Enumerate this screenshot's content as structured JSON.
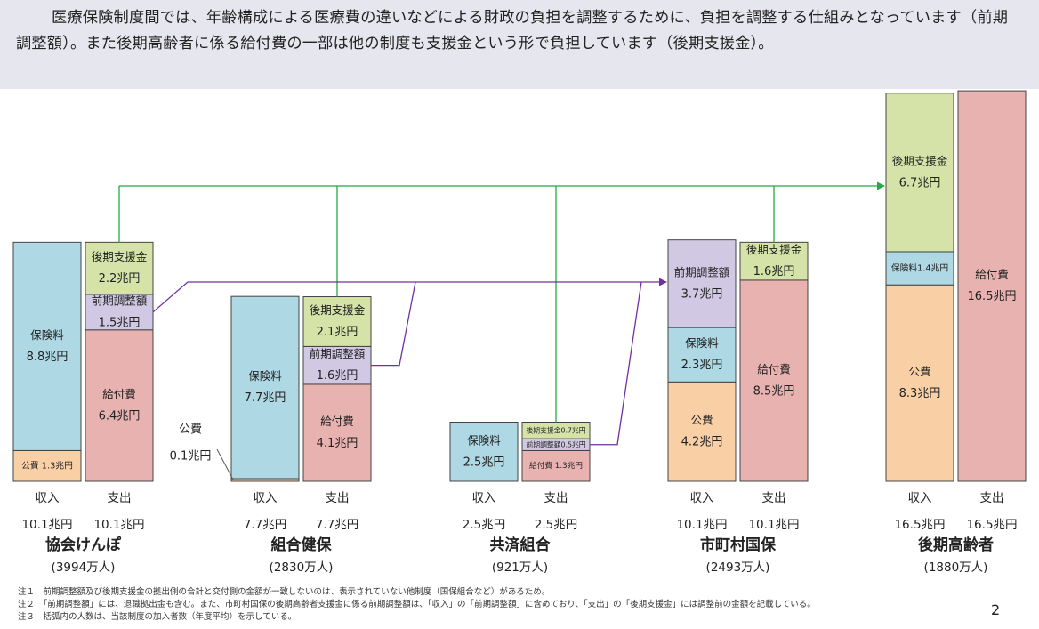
{
  "header": {
    "text": "医療保険制度間では、年齢構成による医療費の違いなどによる財政の負担を調整するために、負担を調整する仕組みとなっています（前期調整額）。また後期高齢者に係る給付費の一部は他の制度も支援金という形で負担しています（後期支援金）。"
  },
  "colors": {
    "premium": "#aed8e4",
    "public": "#f9d0a6",
    "benefit": "#e8b2b0",
    "adjustment": "#d1c8e4",
    "support": "#d5e2a8",
    "flow_support": "#22aa44",
    "flow_adjustment": "#7030a0",
    "border": "#444444"
  },
  "chart_data": {
    "type": "stacked-bar",
    "unit": "兆円",
    "column_labels": {
      "income": "収入",
      "expense": "支出"
    },
    "systems": [
      {
        "name": "協会けんぽ",
        "members": "(3994万人)",
        "income_total": "10.1兆円",
        "expense_total": "10.1兆円",
        "income": [
          {
            "category": "公費",
            "value": 1.3,
            "label": "公費 1.3兆円"
          },
          {
            "category": "保険料",
            "value": 8.8,
            "label": "保険料",
            "value_label": "8.8兆円"
          }
        ],
        "expense": [
          {
            "category": "給付費",
            "value": 6.4,
            "label": "給付費",
            "value_label": "6.4兆円"
          },
          {
            "category": "前期調整額",
            "value": 1.5,
            "label": "前期調整額",
            "value_label": "1.5兆円"
          },
          {
            "category": "後期支援金",
            "value": 2.2,
            "label": "後期支援金",
            "value_label": "2.2兆円"
          }
        ]
      },
      {
        "name": "組合健保",
        "members": "(2830万人)",
        "income_total": "7.7兆円",
        "expense_total": "7.7兆円",
        "income": [
          {
            "category": "公費",
            "value": 0.1,
            "label": "公費",
            "value_label": "0.1兆円"
          },
          {
            "category": "保険料",
            "value": 7.7,
            "label": "保険料",
            "value_label": "7.7兆円"
          }
        ],
        "expense": [
          {
            "category": "給付費",
            "value": 4.1,
            "label": "給付費",
            "value_label": "4.1兆円"
          },
          {
            "category": "前期調整額",
            "value": 1.6,
            "label": "前期調整額",
            "value_label": "1.6兆円"
          },
          {
            "category": "後期支援金",
            "value": 2.1,
            "label": "後期支援金",
            "value_label": "2.1兆円"
          }
        ]
      },
      {
        "name": "共済組合",
        "members": "(921万人)",
        "income_total": "2.5兆円",
        "expense_total": "2.5兆円",
        "income": [
          {
            "category": "保険料",
            "value": 2.5,
            "label": "保険料",
            "value_label": "2.5兆円"
          }
        ],
        "expense": [
          {
            "category": "給付費",
            "value": 1.3,
            "label": "給付費 1.3兆円"
          },
          {
            "category": "前期調整額",
            "value": 0.5,
            "label": "前期調整額0.5兆円"
          },
          {
            "category": "後期支援金",
            "value": 0.7,
            "label": "後期支援金0.7兆円"
          }
        ]
      },
      {
        "name": "市町村国保",
        "members": "(2493万人)",
        "income_total": "10.1兆円",
        "expense_total": "10.1兆円",
        "income": [
          {
            "category": "公費",
            "value": 4.2,
            "label": "公費",
            "value_label": "4.2兆円"
          },
          {
            "category": "保険料",
            "value": 2.3,
            "label": "保険料",
            "value_label": "2.3兆円"
          },
          {
            "category": "前期調整額",
            "value": 3.7,
            "label": "前期調整額",
            "value_label": "3.7兆円"
          }
        ],
        "expense": [
          {
            "category": "給付費",
            "value": 8.5,
            "label": "給付費",
            "value_label": "8.5兆円"
          },
          {
            "category": "後期支援金",
            "value": 1.6,
            "label": "後期支援金",
            "value_label": "1.6兆円"
          }
        ]
      },
      {
        "name": "後期高齢者",
        "members": "(1880万人)",
        "income_total": "16.5兆円",
        "expense_total": "16.5兆円",
        "income": [
          {
            "category": "公費",
            "value": 8.3,
            "label": "公費",
            "value_label": "8.3兆円"
          },
          {
            "category": "保険料",
            "value": 1.4,
            "label": "保険料1.4兆円"
          },
          {
            "category": "後期支援金",
            "value": 6.7,
            "label": "後期支援金",
            "value_label": "6.7兆円"
          }
        ],
        "expense": [
          {
            "category": "給付費",
            "value": 16.5,
            "label": "給付費",
            "value_label": "16.5兆円"
          }
        ]
      }
    ]
  },
  "notes": [
    "注１　前期調整額及び後期支援金の拠出側の合計と交付側の金額が一致しないのは、表示されていない他制度（国保組合など）があるため。",
    "注２　「前期調整額」には、退職拠出金も含む。また、市町村国保の後期高齢者支援金に係る前期調整額は、「収入」の「前期調整額」に含めており、「支出」の「後期支援金」には調整前の金額を記載している。",
    "注３　括弧内の人数は、当該制度の加入者数（年度平均）を示している。"
  ],
  "page_number": "2"
}
